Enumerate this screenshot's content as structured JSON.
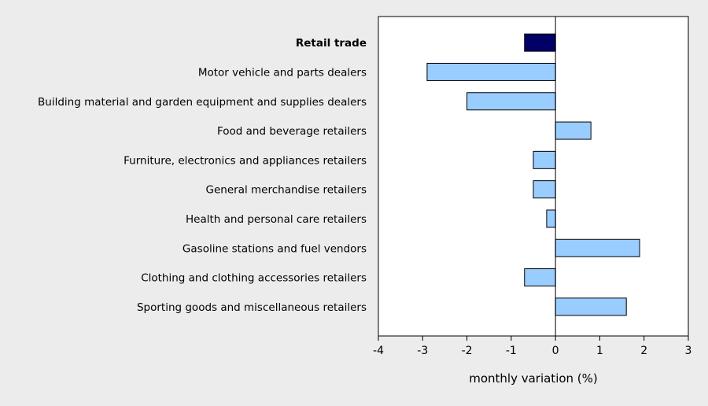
{
  "chart_data": {
    "type": "bar",
    "orientation": "horizontal",
    "title": "",
    "xlabel": "monthly variation (%)",
    "ylabel": "",
    "xlim": [
      -4,
      3
    ],
    "xticks": [
      -4,
      -3,
      -2,
      -1,
      0,
      1,
      2,
      3
    ],
    "grid": false,
    "legend": "none",
    "categories": [
      "Retail trade",
      "Motor vehicle and parts dealers",
      "Building material and garden equipment and supplies dealers",
      "Food and beverage retailers",
      "Furniture, electronics and appliances retailers",
      "General merchandise retailers",
      "Health and personal care retailers",
      "Gasoline stations and fuel vendors",
      "Clothing and clothing accessories retailers",
      "Sporting goods and miscellaneous retailers"
    ],
    "values": [
      -0.7,
      -2.9,
      -2.0,
      0.8,
      -0.5,
      -0.5,
      -0.2,
      1.9,
      -0.7,
      1.6
    ],
    "highlight_index": 0,
    "colors": {
      "highlight": "#000066",
      "bar": "#99ccff",
      "bar_stroke": "#000000",
      "plot_background": "#ffffff",
      "page_background": "#ececec"
    }
  }
}
